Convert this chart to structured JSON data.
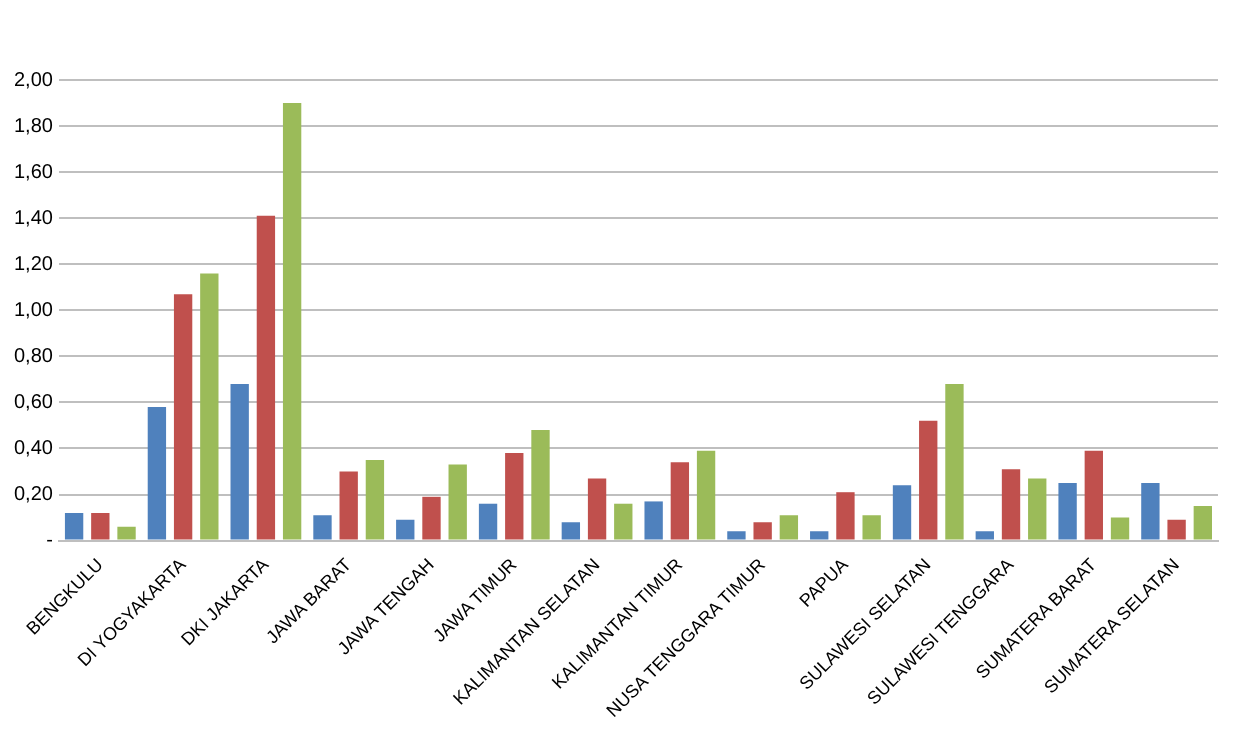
{
  "chart_data": {
    "type": "bar",
    "categories": [
      "BENGKULU",
      "DI YOGYAKARTA",
      "DKI JAKARTA",
      "JAWA BARAT",
      "JAWA TENGAH",
      "JAWA TIMUR",
      "KALIMANTAN SELATAN",
      "KALIMANTAN TIMUR",
      "NUSA TENGGARA TIMUR",
      "PAPUA",
      "SULAWESI SELATAN",
      "SULAWESI TENGGARA",
      "SUMATERA BARAT",
      "SUMATERA SELATAN"
    ],
    "series": [
      {
        "color": "#4f81bd",
        "values": [
          0.12,
          0.58,
          0.68,
          0.11,
          0.09,
          0.16,
          0.08,
          0.17,
          0.04,
          0.04,
          0.24,
          0.04,
          0.25,
          0.25
        ]
      },
      {
        "color": "#c0504d",
        "values": [
          0.12,
          1.07,
          1.41,
          0.3,
          0.19,
          0.38,
          0.27,
          0.34,
          0.08,
          0.21,
          0.52,
          0.31,
          0.39,
          0.09
        ]
      },
      {
        "color": "#9bbb59",
        "values": [
          0.06,
          1.16,
          1.9,
          0.35,
          0.33,
          0.48,
          0.16,
          0.39,
          0.11,
          0.11,
          0.68,
          0.27,
          0.1,
          0.15
        ]
      }
    ],
    "ylim": [
      0,
      2
    ],
    "yticks": [
      {
        "value": 0,
        "label": "-"
      },
      {
        "value": 0.2,
        "label": "0,20"
      },
      {
        "value": 0.4,
        "label": "0,40"
      },
      {
        "value": 0.6,
        "label": "0,60"
      },
      {
        "value": 0.8,
        "label": "0,80"
      },
      {
        "value": 1,
        "label": "1,00"
      },
      {
        "value": 1.2,
        "label": "1,20"
      },
      {
        "value": 1.4,
        "label": "1,40"
      },
      {
        "value": 1.6,
        "label": "1,60"
      },
      {
        "value": 1.8,
        "label": "1,80"
      },
      {
        "value": 2,
        "label": "2,00"
      }
    ],
    "grid": "y",
    "legend": false
  }
}
